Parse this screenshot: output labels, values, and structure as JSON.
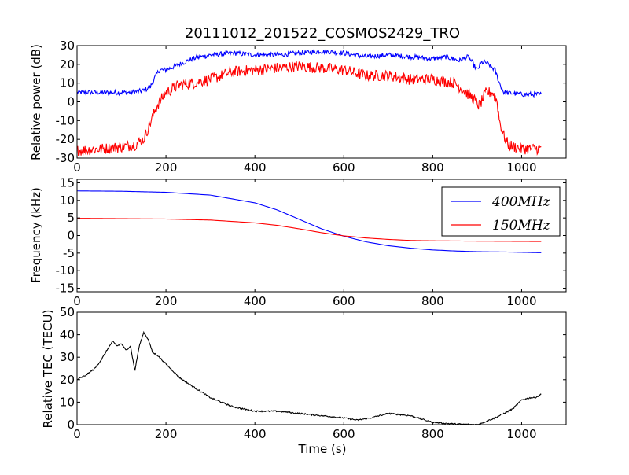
{
  "figure": {
    "title": "20111012_201522_COSMOS2429_TRO",
    "background": "#ffffff"
  },
  "chart_data": [
    {
      "type": "line",
      "ylabel": "Relative power (dB)",
      "xlabel": "",
      "xlim": [
        0,
        1100
      ],
      "ylim": [
        -30,
        30
      ],
      "xticks": [
        0,
        200,
        400,
        600,
        800,
        1000
      ],
      "yticks": [
        -30,
        -20,
        -10,
        0,
        10,
        20,
        30
      ],
      "grid": false,
      "series": [
        {
          "color": "#0000ff",
          "noise": 1.3,
          "x": [
            0,
            60,
            120,
            150,
            165,
            175,
            185,
            200,
            230,
            260,
            300,
            350,
            400,
            450,
            500,
            550,
            600,
            650,
            700,
            750,
            800,
            830,
            860,
            880,
            900,
            910,
            920,
            930,
            940,
            950,
            960,
            1000,
            1045
          ],
          "y": [
            5,
            5,
            5,
            6,
            8,
            13,
            17,
            17,
            20,
            23,
            25,
            26,
            25,
            25,
            26,
            27,
            26,
            24,
            25,
            24,
            23,
            24,
            22,
            24,
            17,
            21,
            21,
            19,
            17,
            10,
            5,
            4,
            4
          ]
        },
        {
          "color": "#ff0000",
          "noise": 3.0,
          "x": [
            0,
            60,
            100,
            130,
            150,
            160,
            170,
            180,
            200,
            230,
            260,
            300,
            350,
            400,
            450,
            500,
            550,
            600,
            650,
            700,
            750,
            800,
            850,
            870,
            890,
            905,
            920,
            935,
            945,
            950,
            960,
            970,
            1000,
            1045
          ],
          "y": [
            -26,
            -25,
            -24,
            -23,
            -20,
            -14,
            -8,
            -2,
            5,
            9,
            10,
            12,
            16,
            17,
            18,
            19,
            18,
            17,
            14,
            14,
            12,
            12,
            10,
            6,
            2,
            -2,
            5,
            5,
            0,
            -10,
            -18,
            -23,
            -25,
            -25
          ]
        }
      ]
    },
    {
      "type": "line",
      "ylabel": "Frequency (kHz)",
      "xlabel": "",
      "xlim": [
        0,
        1100
      ],
      "ylim": [
        -16,
        16
      ],
      "xticks": [
        0,
        200,
        400,
        600,
        800,
        1000
      ],
      "yticks": [
        -15,
        -10,
        -5,
        0,
        5,
        10,
        15
      ],
      "grid": false,
      "legend": "top-right",
      "series": [
        {
          "name": "400MHz",
          "color": "#0000ff",
          "noise": 0,
          "x": [
            0,
            100,
            200,
            300,
            400,
            450,
            500,
            550,
            600,
            650,
            700,
            750,
            800,
            850,
            900,
            970,
            1045
          ],
          "y": [
            12.7,
            12.6,
            12.3,
            11.5,
            9.3,
            7.3,
            4.6,
            1.9,
            -0.2,
            -1.8,
            -2.9,
            -3.6,
            -4.1,
            -4.4,
            -4.6,
            -4.7,
            -4.9
          ]
        },
        {
          "name": "150MHz",
          "color": "#ff0000",
          "noise": 0,
          "x": [
            0,
            100,
            200,
            300,
            400,
            450,
            500,
            550,
            600,
            650,
            700,
            750,
            800,
            900,
            1045
          ],
          "y": [
            4.9,
            4.8,
            4.7,
            4.4,
            3.6,
            2.9,
            1.9,
            0.8,
            -0.1,
            -0.7,
            -1.1,
            -1.4,
            -1.5,
            -1.6,
            -1.7
          ]
        }
      ]
    },
    {
      "type": "line",
      "ylabel": "Relative TEC (TECU)",
      "xlabel": "Time (s)",
      "xlim": [
        0,
        1100
      ],
      "ylim": [
        0,
        50
      ],
      "xticks": [
        0,
        200,
        400,
        600,
        800,
        1000
      ],
      "yticks": [
        0,
        10,
        20,
        30,
        40,
        50
      ],
      "grid": false,
      "series": [
        {
          "color": "#000000",
          "noise": 0.3,
          "x": [
            0,
            20,
            40,
            55,
            70,
            80,
            90,
            100,
            110,
            120,
            130,
            140,
            150,
            160,
            170,
            180,
            200,
            230,
            260,
            300,
            350,
            400,
            450,
            500,
            550,
            600,
            630,
            660,
            700,
            750,
            800,
            850,
            900,
            940,
            960,
            980,
            1000,
            1020,
            1030,
            1040,
            1045
          ],
          "y": [
            20,
            22,
            25,
            29,
            34,
            37,
            35,
            36,
            33,
            35,
            24,
            35,
            41,
            38,
            32,
            31,
            27,
            21,
            17,
            12,
            8,
            6,
            6,
            5,
            4,
            3,
            2,
            3,
            5,
            4,
            1,
            0.3,
            0,
            3,
            5,
            7,
            11,
            12,
            12,
            13,
            14
          ]
        }
      ]
    }
  ]
}
